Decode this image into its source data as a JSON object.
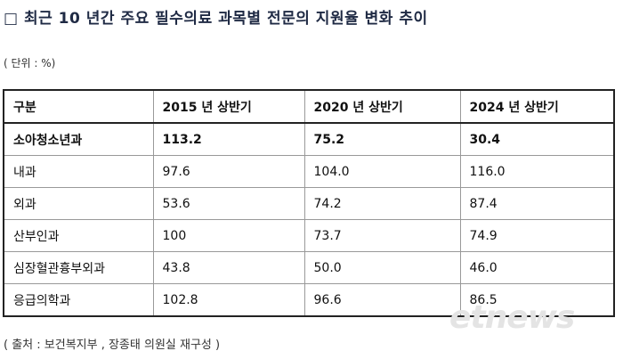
{
  "header": {
    "title": "□ 최근 10 년간 주요 필수의료 과목별 전문의 지원율 변화 추이",
    "unit": "( 단위 : %)"
  },
  "table": {
    "columns": [
      "구분",
      "2015 년 상반기",
      "2020 년 상반기",
      "2024 년 상반기"
    ],
    "rows": [
      [
        "소아청소년과",
        "113.2",
        "75.2",
        "30.4"
      ],
      [
        "내과",
        "97.6",
        "104.0",
        "116.0"
      ],
      [
        "외과",
        "53.6",
        "74.2",
        "87.4"
      ],
      [
        "산부인과",
        "100",
        "73.7",
        "74.9"
      ],
      [
        "심장혈관흉부외과",
        "43.8",
        "50.0",
        "46.0"
      ],
      [
        "응급의학과",
        "102.8",
        "96.6",
        "86.5"
      ]
    ]
  },
  "footer": {
    "source": "( 출처 : 보건복지부 , 장종태 의원실 재구성 )",
    "watermark": "etnews"
  }
}
